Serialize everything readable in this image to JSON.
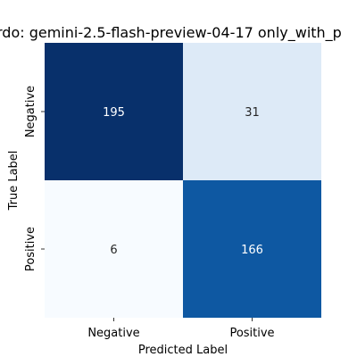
{
  "chart_data": {
    "type": "heatmap",
    "title": "rdo: gemini-2.5-flash-preview-04-17 only_with_p",
    "xlabel": "Predicted Label",
    "ylabel": "True Label",
    "x_categories": [
      "Negative",
      "Positive"
    ],
    "y_categories": [
      "Negative",
      "Positive"
    ],
    "values": [
      [
        195,
        31
      ],
      [
        6,
        166
      ]
    ],
    "colormap": "Blues",
    "value_range": [
      6,
      195
    ],
    "colorbar": false
  },
  "colors": {
    "cell_dark": "#08306b",
    "cell_light": "#f7fbff",
    "text_on_dark": "#ffffff",
    "text_on_light": "#262626"
  }
}
